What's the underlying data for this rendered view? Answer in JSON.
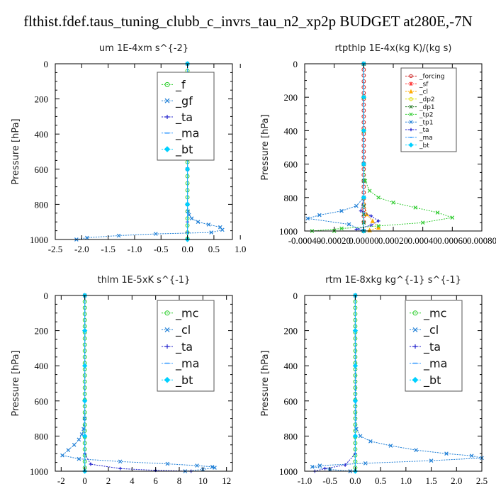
{
  "title": "flthist.fdef.taus_tuning_clubb_c_invrs_tau_n2_xp2p  BUDGET at280E,-7N",
  "chart_data": [
    {
      "type": "line",
      "title": "um   1E-4xm s^{-2}",
      "ylabel": "Pressure [hPa]",
      "xlim": [
        -2.5,
        0.85
      ],
      "ylim": [
        1000,
        0
      ],
      "xticks": [
        "-2.5",
        "-2.0",
        "-1.5",
        "-1.0",
        "-0.5",
        "0.0",
        "0.5",
        "1.0"
      ],
      "xtickvals": [
        -2.5,
        -2.0,
        -1.5,
        -1.0,
        -0.5,
        0.0,
        0.5,
        1.0
      ],
      "yticks": [
        "0",
        "200",
        "400",
        "600",
        "800",
        "1000"
      ],
      "legend_position": "top-right",
      "legend_size": 16,
      "series": [
        {
          "name": "_f",
          "color": "#22cc22",
          "marker": "o",
          "x": [
            0,
            0,
            0,
            0,
            0,
            0,
            0,
            0,
            0,
            0,
            0,
            0,
            0,
            0,
            0,
            0,
            0,
            0,
            0,
            0,
            0,
            0,
            0,
            0,
            0,
            0
          ],
          "y": [
            0,
            40,
            80,
            120,
            160,
            200,
            240,
            280,
            320,
            360,
            400,
            440,
            480,
            520,
            560,
            600,
            640,
            680,
            720,
            760,
            800,
            840,
            880,
            920,
            960,
            995
          ]
        },
        {
          "name": "_gf",
          "color": "#1f7fd6",
          "marker": "x",
          "x": [
            0,
            0,
            0,
            0,
            0,
            0.01,
            0.03,
            0.08,
            0.2,
            0.4,
            0.62,
            0.66,
            0.45,
            -0.6,
            -1.3,
            -1.9,
            -2.1
          ],
          "y": [
            0,
            200,
            400,
            600,
            800,
            840,
            860,
            880,
            900,
            915,
            930,
            945,
            960,
            968,
            978,
            990,
            1000
          ]
        },
        {
          "name": "_ta",
          "color": "#2222cc",
          "marker": "+",
          "x": [
            0,
            0,
            0,
            0,
            0,
            0,
            0,
            0
          ],
          "y": [
            0,
            200,
            400,
            600,
            800,
            900,
            960,
            1000
          ]
        },
        {
          "name": "_ma",
          "color": "#3399ff",
          "marker": "-",
          "x": [
            0,
            0,
            0,
            0,
            0,
            0
          ],
          "y": [
            0,
            200,
            400,
            600,
            800,
            1000
          ]
        },
        {
          "name": "_bt",
          "color": "#00d0ff",
          "marker": "d",
          "x": [
            0,
            0,
            0,
            0,
            0,
            0
          ],
          "y": [
            0,
            200,
            400,
            600,
            800,
            1000
          ]
        }
      ]
    },
    {
      "type": "line",
      "title": "rtpthlp   1E-4x(kg K)/(kg s)",
      "ylabel": "Pressure [hPa]",
      "xlim": [
        -0.0004,
        0.0008
      ],
      "ylim": [
        1000,
        0
      ],
      "xticks": [
        "-0.00040",
        "-0.00020",
        "0.00000",
        "0.00020",
        "0.00040",
        "0.00060",
        "0.00080"
      ],
      "xtickvals": [
        -0.0004,
        -0.0002,
        0,
        0.0002,
        0.0004,
        0.0006,
        0.0008
      ],
      "yticks": [
        "0",
        "200",
        "400",
        "600",
        "800",
        "1000"
      ],
      "legend_position": "top-right",
      "legend_size": 9,
      "series": [
        {
          "name": "_forcing",
          "color": "#cc2222",
          "marker": "o",
          "x": [
            0,
            0,
            0,
            0,
            0,
            0,
            0,
            0,
            0,
            0,
            0,
            0,
            0,
            0,
            0,
            0,
            0,
            0,
            0,
            0,
            0,
            0,
            0,
            0,
            0,
            0,
            0,
            0
          ],
          "y": [
            0,
            35,
            70,
            105,
            140,
            175,
            210,
            245,
            280,
            315,
            350,
            385,
            420,
            455,
            490,
            525,
            560,
            595,
            630,
            665,
            700,
            735,
            770,
            805,
            840,
            875,
            910,
            945
          ]
        },
        {
          "name": "_sf",
          "color": "#ff3333",
          "marker": "*",
          "x": [
            0,
            0,
            0,
            0,
            0,
            0
          ],
          "y": [
            0,
            200,
            400,
            600,
            800,
            1000
          ]
        },
        {
          "name": "_cl",
          "color": "#ffaa00",
          "marker": "^",
          "x": [
            0,
            0,
            0,
            0,
            0,
            2e-05,
            6e-05,
            0.0001,
            4e-05,
            0
          ],
          "y": [
            0,
            200,
            400,
            600,
            800,
            900,
            940,
            980,
            995,
            1000
          ]
        },
        {
          "name": "_dp2",
          "color": "#dddd00",
          "marker": "o",
          "x": [
            0,
            0,
            0,
            0,
            0,
            0
          ],
          "y": [
            0,
            200,
            400,
            600,
            800,
            1000
          ]
        },
        {
          "name": "_dp1",
          "color": "#227722",
          "marker": "x",
          "x": [
            0,
            0,
            0,
            0,
            0,
            0,
            0,
            0,
            0,
            0
          ],
          "y": [
            0,
            200,
            400,
            600,
            700,
            800,
            850,
            900,
            950,
            1000
          ]
        },
        {
          "name": "_tp2",
          "color": "#33cc33",
          "marker": "x",
          "x": [
            0,
            0,
            0,
            1e-05,
            4e-05,
            0.0001,
            0.0002,
            0.00035,
            0.0005,
            0.0006,
            0.0004,
            0.0001,
            -0.00015,
            -0.00035,
            -0.0002,
            0
          ],
          "y": [
            0,
            400,
            600,
            700,
            760,
            800,
            830,
            860,
            890,
            920,
            950,
            970,
            985,
            1000,
            1000,
            1000
          ]
        },
        {
          "name": "_tp1",
          "color": "#1f7fd6",
          "marker": "x",
          "x": [
            0,
            0,
            0,
            -5e-05,
            -0.00015,
            -0.0003,
            -0.00038,
            -0.0001,
            0
          ],
          "y": [
            0,
            600,
            800,
            850,
            880,
            905,
            925,
            960,
            1000
          ]
        },
        {
          "name": "_ta",
          "color": "#2222cc",
          "marker": "+",
          "x": [
            0,
            0,
            -2e-05,
            5e-05,
            0.0001,
            5e-05,
            -5e-05,
            0
          ],
          "y": [
            0,
            800,
            880,
            910,
            940,
            965,
            990,
            1000
          ]
        },
        {
          "name": "_ma",
          "color": "#3399ff",
          "marker": "-",
          "x": [
            0,
            0,
            0,
            0,
            0,
            0
          ],
          "y": [
            0,
            200,
            400,
            600,
            800,
            1000
          ]
        },
        {
          "name": "_bt",
          "color": "#00d0ff",
          "marker": "d",
          "x": [
            0,
            0,
            0,
            0,
            0,
            0
          ],
          "y": [
            0,
            200,
            400,
            600,
            800,
            1000
          ]
        }
      ]
    },
    {
      "type": "line",
      "title": "thlm   1E-5xK s^{-1}",
      "ylabel": "Pressure [hPa]",
      "xlim": [
        -2.5,
        12.5
      ],
      "ylim": [
        1000,
        0
      ],
      "xticks": [
        "-2",
        "0",
        "2",
        "4",
        "6",
        "8",
        "10",
        "12"
      ],
      "xtickvals": [
        -2,
        0,
        2,
        4,
        6,
        8,
        10,
        12
      ],
      "yticks": [
        "0",
        "200",
        "400",
        "600",
        "800",
        "1000"
      ],
      "legend_position": "top-right",
      "legend_size": 16,
      "series": [
        {
          "name": "_mc",
          "color": "#22cc22",
          "marker": "o",
          "x": [
            0,
            0,
            0,
            0,
            0,
            0,
            0,
            0,
            0,
            0,
            0,
            0,
            0,
            0,
            0,
            0,
            0,
            0,
            0,
            0,
            0,
            0,
            0,
            0,
            0,
            0,
            0,
            0,
            0
          ],
          "y": [
            0,
            35,
            70,
            105,
            140,
            175,
            210,
            245,
            280,
            315,
            350,
            385,
            420,
            455,
            490,
            525,
            560,
            595,
            630,
            665,
            700,
            735,
            770,
            805,
            840,
            875,
            910,
            945,
            980
          ]
        },
        {
          "name": "_cl",
          "color": "#1f7fd6",
          "marker": "x",
          "x": [
            0,
            -0.02,
            -0.1,
            -0.25,
            -0.5,
            -0.9,
            -1.4,
            -1.9,
            -0.5,
            3.0,
            7.0,
            9.5,
            10.8,
            11.0,
            10.0,
            8.5
          ],
          "y": [
            0,
            700,
            760,
            790,
            820,
            850,
            880,
            910,
            930,
            945,
            958,
            968,
            975,
            980,
            990,
            1000
          ]
        },
        {
          "name": "_ta",
          "color": "#2222cc",
          "marker": "+",
          "x": [
            0,
            0,
            0,
            0.5,
            3,
            6,
            9
          ],
          "y": [
            0,
            800,
            900,
            960,
            985,
            995,
            1000
          ]
        },
        {
          "name": "_ma",
          "color": "#3399ff",
          "marker": "-",
          "x": [
            0,
            0,
            0,
            0,
            0,
            0
          ],
          "y": [
            0,
            200,
            400,
            600,
            800,
            1000
          ]
        },
        {
          "name": "_bt",
          "color": "#00d0ff",
          "marker": "d",
          "x": [
            0,
            0,
            0,
            0,
            0,
            0
          ],
          "y": [
            0,
            200,
            400,
            600,
            800,
            1000
          ]
        }
      ]
    },
    {
      "type": "line",
      "title": "rtm   1E-8xkg kg^{-1} s^{-1}",
      "ylabel": "Pressure [hPa]",
      "xlim": [
        -1.0,
        2.5
      ],
      "ylim": [
        1000,
        0
      ],
      "xticks": [
        "-1.0",
        "-0.5",
        "0.0",
        "0.5",
        "1.0",
        "1.5",
        "2.0",
        "2.5"
      ],
      "xtickvals": [
        -1.0,
        -0.5,
        0.0,
        0.5,
        1.0,
        1.5,
        2.0,
        2.5
      ],
      "yticks": [
        "0",
        "200",
        "400",
        "600",
        "800",
        "1000"
      ],
      "legend_position": "top-right",
      "legend_size": 16,
      "series": [
        {
          "name": "_mc",
          "color": "#22cc22",
          "marker": "o",
          "x": [
            0,
            0,
            0,
            0,
            0,
            0,
            0,
            0,
            0,
            0,
            0,
            0,
            0,
            0,
            0,
            0,
            0,
            0,
            0,
            0,
            0,
            0,
            0,
            0,
            0,
            0,
            0,
            0,
            0
          ],
          "y": [
            0,
            35,
            70,
            105,
            140,
            175,
            210,
            245,
            280,
            315,
            350,
            385,
            420,
            455,
            490,
            525,
            560,
            595,
            630,
            665,
            700,
            735,
            770,
            805,
            840,
            875,
            910,
            945,
            980
          ]
        },
        {
          "name": "_cl",
          "color": "#1f7fd6",
          "marker": "x",
          "x": [
            0,
            0.02,
            0.1,
            0.3,
            0.7,
            1.2,
            1.8,
            2.3,
            2.5,
            1.5,
            0.2,
            -0.7,
            -0.85,
            -0.5,
            -0.1
          ],
          "y": [
            0,
            760,
            800,
            830,
            855,
            880,
            900,
            912,
            925,
            940,
            955,
            968,
            975,
            990,
            1000
          ]
        },
        {
          "name": "_ta",
          "color": "#2222cc",
          "marker": "+",
          "x": [
            0,
            0,
            0,
            -0.2,
            -0.6,
            -0.8
          ],
          "y": [
            0,
            800,
            900,
            965,
            985,
            1000
          ]
        },
        {
          "name": "_ma",
          "color": "#3399ff",
          "marker": "-",
          "x": [
            0,
            0,
            0,
            0,
            0,
            0
          ],
          "y": [
            0,
            200,
            400,
            600,
            800,
            1000
          ]
        },
        {
          "name": "_bt",
          "color": "#00d0ff",
          "marker": "d",
          "x": [
            0,
            0,
            0,
            0,
            0,
            0
          ],
          "y": [
            0,
            200,
            400,
            600,
            800,
            1000
          ]
        }
      ]
    }
  ]
}
